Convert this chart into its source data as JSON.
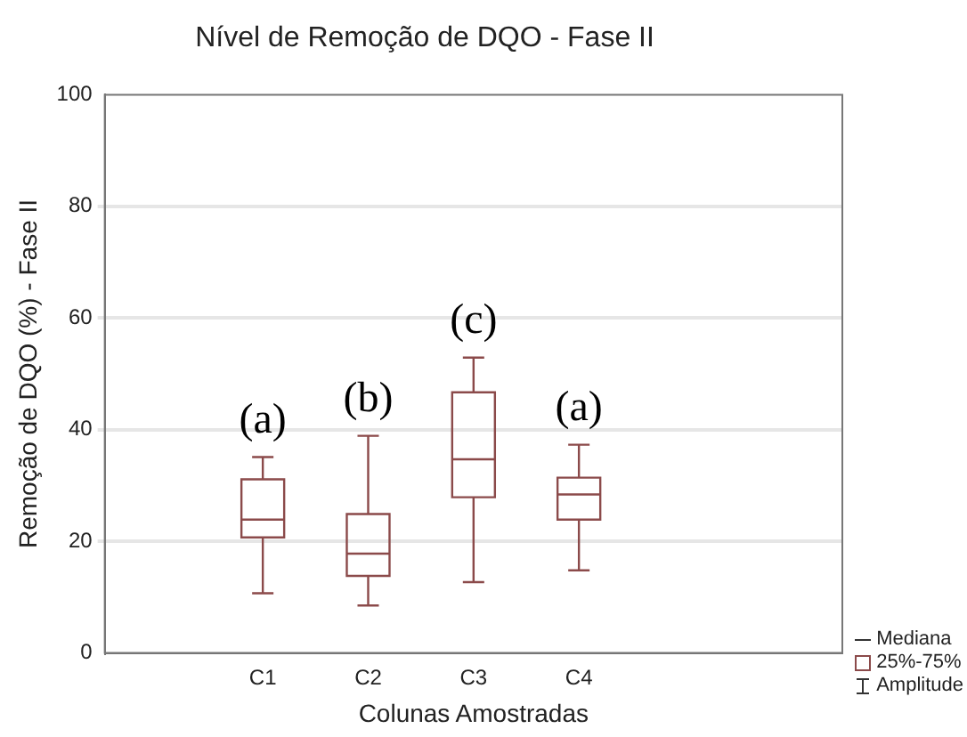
{
  "chart_data": {
    "type": "box",
    "title": "Nível de Remoção de DQO - Fase II",
    "xlabel": "Colunas Amostradas",
    "ylabel": "Remoção de DQO (%) - Fase II",
    "categories": [
      null,
      "C1",
      "C2",
      "C3",
      "C4",
      null
    ],
    "color": "#8b4a4a",
    "boxes": [
      null,
      {
        "low": 10.7,
        "q1": 20.7,
        "median": 23.9,
        "q3": 31.1,
        "high": 35.1
      },
      {
        "low": 8.5,
        "q1": 13.8,
        "median": 17.8,
        "q3": 24.9,
        "high": 38.9
      },
      {
        "low": 12.7,
        "q1": 27.9,
        "median": 34.7,
        "q3": 46.7,
        "high": 52.9
      },
      {
        "low": 14.8,
        "q1": 23.9,
        "median": 28.4,
        "q3": 31.4,
        "high": 37.3
      },
      null
    ],
    "ylim": [
      0,
      100
    ],
    "yticks": [
      0,
      20,
      40,
      60,
      80,
      100
    ],
    "grid": "y",
    "annotations": [
      "(a)",
      "(b)",
      "(c)",
      "(a)",
      "Mediana",
      "25%-75%",
      "Amplitude"
    ]
  }
}
